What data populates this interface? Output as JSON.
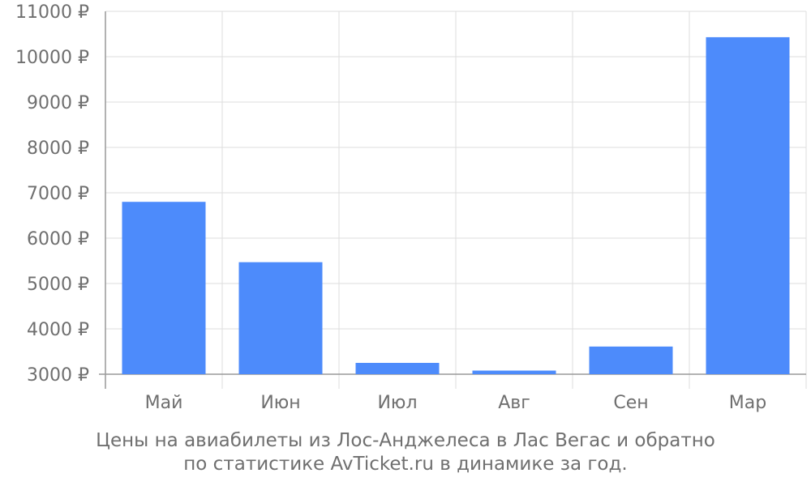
{
  "chart_data": {
    "type": "bar",
    "categories": [
      "Май",
      "Июн",
      "Июл",
      "Авг",
      "Сен",
      "Мар"
    ],
    "values": [
      6800,
      5470,
      3250,
      3080,
      3610,
      10430
    ],
    "ylim": [
      3000,
      11000
    ],
    "yticks": [
      3000,
      4000,
      5000,
      6000,
      7000,
      8000,
      9000,
      10000,
      11000
    ],
    "ytick_labels": [
      "3000 ₽",
      "4000 ₽",
      "5000 ₽",
      "6000 ₽",
      "7000 ₽",
      "8000 ₽",
      "9000 ₽",
      "10000 ₽",
      "11000 ₽"
    ],
    "grid": true,
    "bar_color": "#4d8bfb",
    "grid_color": "#dddddd",
    "axis_color": "#999999",
    "text_color": "#6f6f6f"
  },
  "caption": {
    "line1": "Цены на авиабилеты из Лос-Анджелеса в Лас Вегас и обратно",
    "line2": "по статистике AvTicket.ru в динамике за год."
  }
}
